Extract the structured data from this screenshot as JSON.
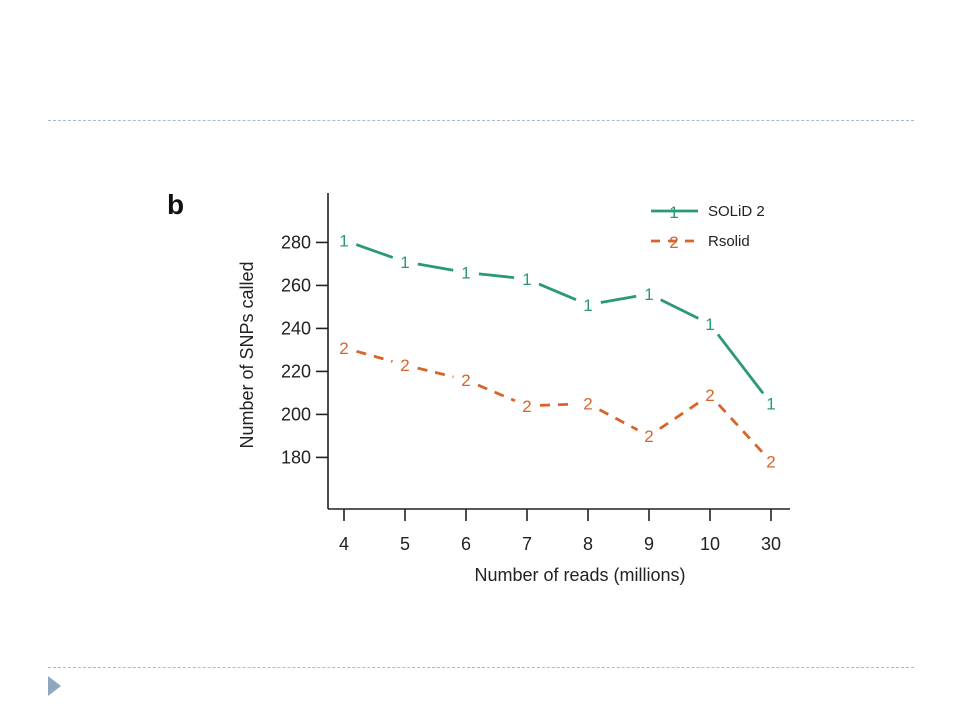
{
  "chart_data": {
    "type": "line",
    "panel_label": "b",
    "title": "",
    "xlabel": "Number of reads (millions)",
    "ylabel": "Number of SNPs called",
    "categories": [
      "4",
      "5",
      "6",
      "7",
      "8",
      "9",
      "10",
      "30"
    ],
    "yticks": [
      180,
      200,
      220,
      240,
      260,
      280
    ],
    "ylim": [
      156,
      303
    ],
    "grid": false,
    "legend_position": "top-right",
    "series": [
      {
        "name": "SOLiD 2",
        "marker": "1",
        "color": "#2a9a72",
        "dash": "solid",
        "values": [
          281,
          271,
          266,
          263,
          251,
          256,
          242,
          205
        ]
      },
      {
        "name": "Rsolid",
        "marker": "2",
        "color": "#d8642a",
        "dash": "dashed",
        "values": [
          231,
          223,
          216,
          204,
          205,
          190,
          209,
          178
        ]
      }
    ]
  }
}
